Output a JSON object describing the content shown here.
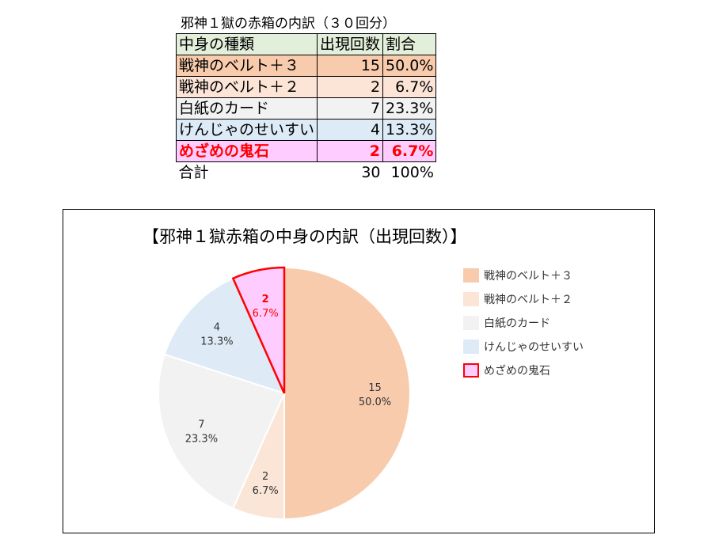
{
  "table": {
    "title": "邪神１獄の赤箱の内訳（３０回分）",
    "headers": [
      "中身の種類",
      "出現回数",
      "割合"
    ],
    "rows": [
      {
        "name": "戦神のベルト＋３",
        "count": "15",
        "pct": "50.0%"
      },
      {
        "name": "戦神のベルト＋２",
        "count": "2",
        "pct": "6.7%"
      },
      {
        "name": "白紙のカード",
        "count": "7",
        "pct": "23.3%"
      },
      {
        "name": "けんじゃのせいすい",
        "count": "4",
        "pct": "13.3%"
      },
      {
        "name": "めざめの鬼石",
        "count": "2",
        "pct": "6.7%"
      }
    ],
    "total": {
      "label": "合計",
      "count": "30",
      "pct": "100%"
    }
  },
  "chart_data": {
    "type": "pie",
    "title": "【邪神１獄赤箱の中身の内訳（出現回数）】",
    "legend_position": "right",
    "slices": [
      {
        "label": "戦神のベルト＋３",
        "legend": "戦神のベルト＋３",
        "value": 15,
        "pct": "50.0%",
        "color": "#f8cbad",
        "highlight": false
      },
      {
        "label": "戦神のベルト＋２",
        "legend": "戦神のベルト＋２",
        "value": 2,
        "pct": "6.7%",
        "color": "#fbe5d6",
        "highlight": false
      },
      {
        "label": "白紙のカード",
        "legend": "白紙のカード",
        "value": 7,
        "pct": "23.3%",
        "color": "#f2f2f2",
        "highlight": false
      },
      {
        "label": "けんじゃのせいすい",
        "legend": "けんじゃのせいすい",
        "value": 4,
        "pct": "13.3%",
        "color": "#deebf7",
        "highlight": false
      },
      {
        "label": "めざめの鬼石",
        "legend": "めざめの鬼石",
        "value": 2,
        "pct": "6.7%",
        "color": "#ffccff",
        "highlight": true
      }
    ],
    "highlight_color": "#ff0000"
  }
}
